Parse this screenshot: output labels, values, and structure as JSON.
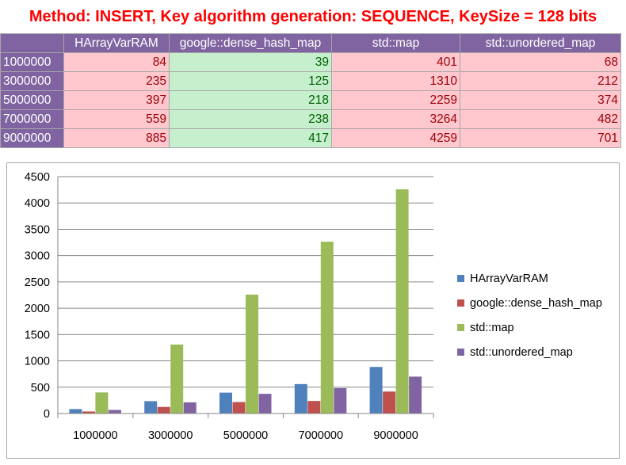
{
  "title": "Method: INSERT, Key algorithm generation: SEQUENCE, KeySize = 128 bits",
  "table": {
    "columns": [
      "HArrayVarRAM",
      "google::dense_hash_map",
      "std::map",
      "std::unordered_map"
    ],
    "rows": [
      {
        "label": "1000000",
        "values": [
          "84",
          "39",
          "401",
          "68"
        ]
      },
      {
        "label": "3000000",
        "values": [
          "235",
          "125",
          "1310",
          "212"
        ]
      },
      {
        "label": "5000000",
        "values": [
          "397",
          "218",
          "2259",
          "374"
        ]
      },
      {
        "label": "7000000",
        "values": [
          "559",
          "238",
          "3264",
          "482"
        ]
      },
      {
        "label": "9000000",
        "values": [
          "885",
          "417",
          "4259",
          "701"
        ]
      }
    ]
  },
  "chart_data": {
    "type": "bar",
    "title": "",
    "xlabel": "",
    "ylabel": "",
    "categories": [
      "1000000",
      "3000000",
      "5000000",
      "7000000",
      "9000000"
    ],
    "series": [
      {
        "name": "HArrayVarRAM",
        "values": [
          84,
          235,
          397,
          559,
          885
        ],
        "color": "#4f81bd"
      },
      {
        "name": "google::dense_hash_map",
        "values": [
          39,
          125,
          218,
          238,
          417
        ],
        "color": "#c0504d"
      },
      {
        "name": "std::map",
        "values": [
          401,
          1310,
          2259,
          3264,
          4259
        ],
        "color": "#9bbb59"
      },
      {
        "name": "std::unordered_map",
        "values": [
          68,
          212,
          374,
          482,
          701
        ],
        "color": "#8064a2"
      }
    ],
    "ylim": [
      0,
      4500
    ],
    "yticks": [
      "0",
      "500",
      "1000",
      "1500",
      "2000",
      "2500",
      "3000",
      "3500",
      "4000",
      "4500"
    ],
    "grid": true,
    "legend": "right"
  },
  "colors": {
    "header_bg": "#8064a2",
    "bad_cell_bg": "#ffc7ce",
    "good_cell_bg": "#c6efce",
    "title_color": "#ff0000"
  }
}
